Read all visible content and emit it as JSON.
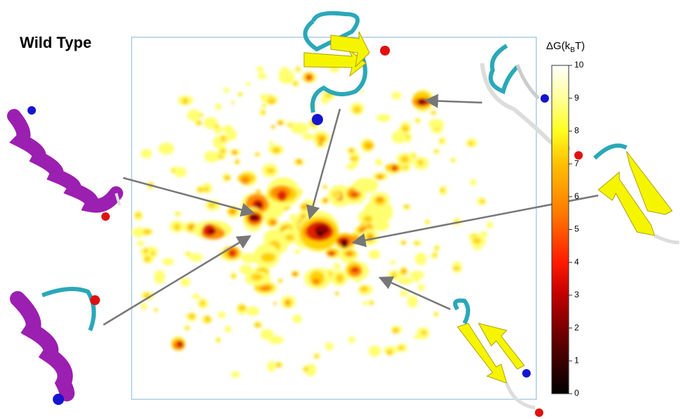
{
  "title": "Wild Type",
  "colorbar": {
    "label": [
      "ΔG(k",
      "B",
      "T)"
    ],
    "lim": [
      0,
      10
    ],
    "ticks": [
      0,
      1,
      2,
      3,
      4,
      5,
      6,
      7,
      8,
      9,
      10
    ]
  }
}
